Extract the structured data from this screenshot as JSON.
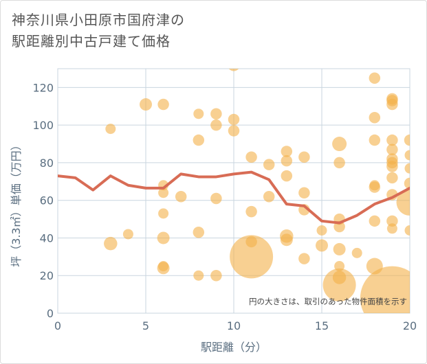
{
  "chart_data": {
    "type": "scatter",
    "title_line1": "神奈川県小田原市国府津の",
    "title_line2": "駅距離別中古戸建て価格",
    "xlabel": "駅距離（分）",
    "ylabel": "坪（3.3㎡）単価（万円）",
    "xlim": [
      0,
      20
    ],
    "ylim": [
      0,
      130
    ],
    "xticks": [
      0,
      5,
      10,
      15,
      20
    ],
    "yticks": [
      0,
      20,
      40,
      60,
      80,
      100,
      120
    ],
    "note": "円の大きさは、取引のあった物件面積を示す",
    "colors": {
      "bubble": "#f3b04a",
      "line": "#d86c55",
      "grid": "#c9d5df",
      "tick": "#5a6e80"
    },
    "points": [
      {
        "x": 3,
        "y": 98,
        "s": 1
      },
      {
        "x": 3,
        "y": 37,
        "s": 1.3
      },
      {
        "x": 4,
        "y": 42,
        "s": 1
      },
      {
        "x": 5,
        "y": 111,
        "s": 1.2
      },
      {
        "x": 6,
        "y": 111,
        "s": 1.1
      },
      {
        "x": 6,
        "y": 68,
        "s": 1
      },
      {
        "x": 6,
        "y": 64,
        "s": 1
      },
      {
        "x": 6,
        "y": 53,
        "s": 1
      },
      {
        "x": 6,
        "y": 40,
        "s": 1.2
      },
      {
        "x": 6,
        "y": 25,
        "s": 1
      },
      {
        "x": 6,
        "y": 24,
        "s": 1.2
      },
      {
        "x": 7,
        "y": 62,
        "s": 1.1
      },
      {
        "x": 8,
        "y": 106,
        "s": 1
      },
      {
        "x": 8,
        "y": 92,
        "s": 1.1
      },
      {
        "x": 8,
        "y": 43,
        "s": 1.1
      },
      {
        "x": 8,
        "y": 20,
        "s": 1
      },
      {
        "x": 9,
        "y": 106,
        "s": 1.1
      },
      {
        "x": 9,
        "y": 100,
        "s": 1.1
      },
      {
        "x": 9,
        "y": 61,
        "s": 1.1
      },
      {
        "x": 9,
        "y": 20,
        "s": 1.1
      },
      {
        "x": 10,
        "y": 132,
        "s": 1.2
      },
      {
        "x": 10,
        "y": 103,
        "s": 1.1
      },
      {
        "x": 10,
        "y": 97,
        "s": 1.1
      },
      {
        "x": 11,
        "y": 83,
        "s": 1.1
      },
      {
        "x": 11,
        "y": 54,
        "s": 1.1
      },
      {
        "x": 11,
        "y": 38,
        "s": 1.1
      },
      {
        "x": 11,
        "y": 30,
        "s": 4.2
      },
      {
        "x": 12,
        "y": 79,
        "s": 1.1
      },
      {
        "x": 12,
        "y": 62,
        "s": 1.1
      },
      {
        "x": 13,
        "y": 86,
        "s": 1.1
      },
      {
        "x": 13,
        "y": 81,
        "s": 1.1
      },
      {
        "x": 13,
        "y": 73,
        "s": 1.1
      },
      {
        "x": 13,
        "y": 41,
        "s": 1.3
      },
      {
        "x": 13,
        "y": 39,
        "s": 1.2
      },
      {
        "x": 14,
        "y": 83,
        "s": 1.1
      },
      {
        "x": 14,
        "y": 64,
        "s": 1.1
      },
      {
        "x": 14,
        "y": 55,
        "s": 1.1
      },
      {
        "x": 14,
        "y": 29,
        "s": 1.1
      },
      {
        "x": 15,
        "y": 44,
        "s": 1
      },
      {
        "x": 15,
        "y": 36,
        "s": 1.2
      },
      {
        "x": 16,
        "y": 90,
        "s": 1.4
      },
      {
        "x": 16,
        "y": 80,
        "s": 1.1
      },
      {
        "x": 16,
        "y": 50,
        "s": 1.1
      },
      {
        "x": 16,
        "y": 46,
        "s": 1.1
      },
      {
        "x": 16,
        "y": 34,
        "s": 1.2
      },
      {
        "x": 16,
        "y": 25,
        "s": 1
      },
      {
        "x": 16,
        "y": 19,
        "s": 1.3
      },
      {
        "x": 16,
        "y": 15,
        "s": 3.2
      },
      {
        "x": 17,
        "y": 32,
        "s": 1
      },
      {
        "x": 18,
        "y": 125,
        "s": 1.1
      },
      {
        "x": 18,
        "y": 104,
        "s": 1.1
      },
      {
        "x": 18,
        "y": 92,
        "s": 1.1
      },
      {
        "x": 18,
        "y": 68,
        "s": 1
      },
      {
        "x": 18,
        "y": 67,
        "s": 1.1
      },
      {
        "x": 18,
        "y": 49,
        "s": 1.1
      },
      {
        "x": 18,
        "y": 25,
        "s": 1.6
      },
      {
        "x": 19,
        "y": 114,
        "s": 1.1
      },
      {
        "x": 19,
        "y": 113,
        "s": 1.1
      },
      {
        "x": 19,
        "y": 111,
        "s": 1.1
      },
      {
        "x": 19,
        "y": 92,
        "s": 1.1
      },
      {
        "x": 19,
        "y": 87,
        "s": 1.1
      },
      {
        "x": 19,
        "y": 82,
        "s": 1.1
      },
      {
        "x": 19,
        "y": 80,
        "s": 1.1
      },
      {
        "x": 19,
        "y": 78,
        "s": 1.1
      },
      {
        "x": 19,
        "y": 72,
        "s": 1.1
      },
      {
        "x": 19,
        "y": 63,
        "s": 1.1
      },
      {
        "x": 19,
        "y": 49,
        "s": 1.1
      },
      {
        "x": 19,
        "y": 45,
        "s": 1
      },
      {
        "x": 19,
        "y": 8,
        "s": 6.2
      },
      {
        "x": 20,
        "y": 92,
        "s": 1.1
      },
      {
        "x": 20,
        "y": 84,
        "s": 1
      },
      {
        "x": 20,
        "y": 77,
        "s": 1
      },
      {
        "x": 20,
        "y": 69,
        "s": 1.1
      },
      {
        "x": 20,
        "y": 59,
        "s": 2.6
      },
      {
        "x": 20,
        "y": 44,
        "s": 1
      }
    ],
    "series": [
      {
        "name": "平均",
        "x": [
          0,
          1,
          2,
          3,
          4,
          5,
          6,
          7,
          8,
          9,
          10,
          11,
          12,
          13,
          14,
          15,
          16,
          17,
          18,
          19,
          20
        ],
        "y": [
          73,
          72,
          65.5,
          73,
          68,
          66.5,
          66.5,
          74,
          72.5,
          72.5,
          74,
          75,
          71,
          58,
          57,
          49,
          48,
          52,
          58,
          61.5,
          66.5
        ]
      }
    ]
  }
}
